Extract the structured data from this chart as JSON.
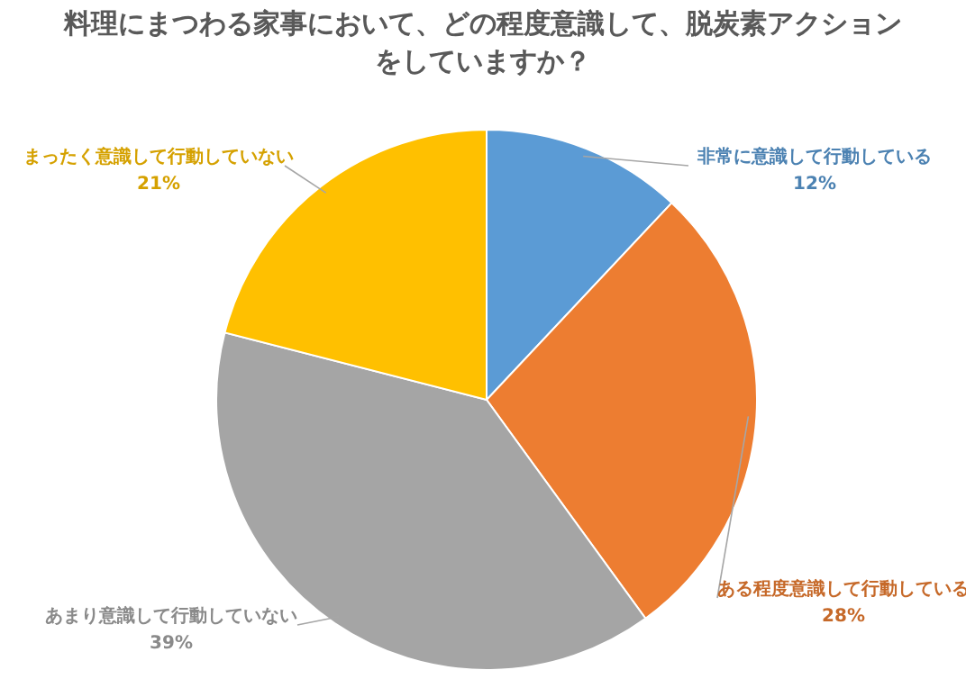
{
  "chart_data": {
    "type": "pie",
    "title": "料理にまつわる家事において、どの程度意識して、脱炭素アクションをしていますか？",
    "categories": [
      "非常に意識して行動している",
      "ある程度意識して行動している",
      "あまり意識して行動していない",
      "まったく意識して行動していない"
    ],
    "values": [
      12,
      28,
      39,
      21
    ],
    "value_labels": [
      "12%",
      "28%",
      "39%",
      "21%"
    ],
    "colors": [
      "#5b9bd5",
      "#ed7d31",
      "#a5a5a5",
      "#ffc000"
    ]
  }
}
